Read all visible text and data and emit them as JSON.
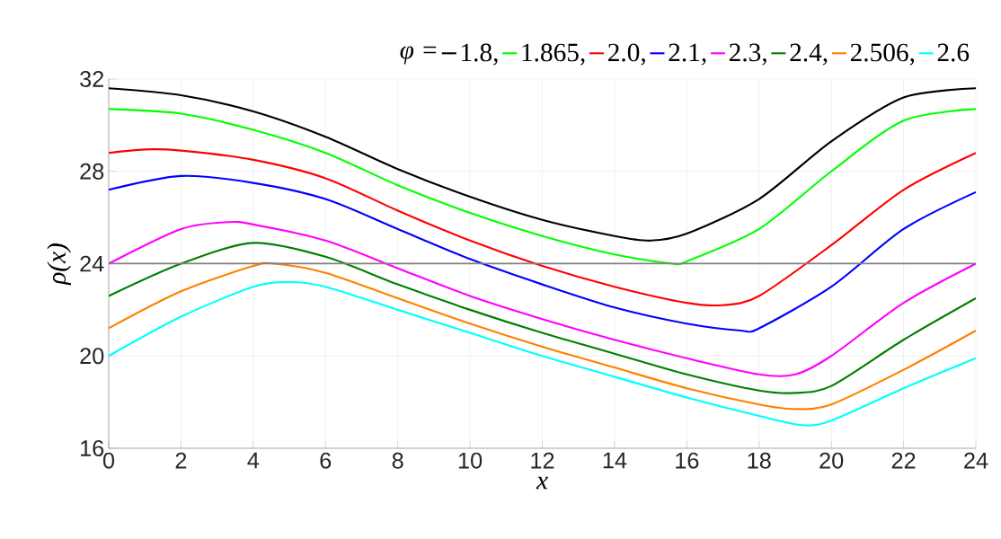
{
  "chart_data": {
    "type": "line",
    "legend_title": "φ =",
    "xlabel": "x",
    "ylabel": "ρ(x)",
    "xlim": [
      0,
      24
    ],
    "ylim": [
      16,
      32
    ],
    "xticks": [
      0,
      2,
      4,
      6,
      8,
      10,
      12,
      14,
      16,
      18,
      20,
      22,
      24
    ],
    "yticks": [
      16,
      20,
      24,
      28,
      32
    ],
    "grid": true,
    "legend": "top right",
    "marker": "none",
    "line_style": "solid",
    "ref_lines": [
      {
        "axis": "y",
        "value": 24,
        "color": "#808080"
      }
    ],
    "series": [
      {
        "name": "1.8,",
        "color": "#000000",
        "x": [
          0,
          2,
          4,
          6,
          8,
          10,
          12,
          14,
          15,
          16,
          18,
          20,
          22,
          24
        ],
        "values": [
          31.6,
          31.3,
          30.6,
          29.5,
          28.1,
          26.9,
          25.9,
          25.2,
          25.0,
          25.3,
          26.8,
          29.3,
          31.2,
          31.6
        ]
      },
      {
        "name": "1.865,",
        "color": "#00ff00",
        "x": [
          0,
          2,
          4,
          6,
          8,
          10,
          12,
          14,
          15.6,
          16,
          18,
          20,
          22,
          24
        ],
        "values": [
          30.7,
          30.5,
          29.8,
          28.8,
          27.4,
          26.2,
          25.2,
          24.4,
          24.0,
          24.1,
          25.5,
          28.0,
          30.2,
          30.7
        ]
      },
      {
        "name": "2.0,",
        "color": "#ff0000",
        "x": [
          0,
          1,
          2,
          4,
          6,
          8,
          10,
          12,
          14,
          16,
          17,
          18,
          20,
          22,
          24
        ],
        "values": [
          28.8,
          28.95,
          28.9,
          28.5,
          27.7,
          26.3,
          25.0,
          23.9,
          23.0,
          22.3,
          22.2,
          22.6,
          24.8,
          27.2,
          28.8
        ]
      },
      {
        "name": "2.1,",
        "color": "#0000ff",
        "x": [
          0,
          2,
          4,
          6,
          8,
          10,
          12,
          14,
          16,
          17.5,
          18,
          20,
          22,
          24
        ],
        "values": [
          27.2,
          27.8,
          27.5,
          26.8,
          25.5,
          24.2,
          23.1,
          22.1,
          21.4,
          21.1,
          21.2,
          23.0,
          25.5,
          27.1
        ]
      },
      {
        "name": "2.3,",
        "color": "#ff00ff",
        "x": [
          0,
          2,
          3.3,
          4,
          6,
          8,
          10,
          12,
          14,
          16,
          18,
          19,
          20,
          22,
          24
        ],
        "values": [
          24.0,
          25.5,
          25.8,
          25.7,
          25.0,
          23.8,
          22.6,
          21.6,
          20.7,
          19.9,
          19.2,
          19.2,
          20.0,
          22.3,
          24.0
        ]
      },
      {
        "name": "2.4,",
        "color": "#008000",
        "x": [
          0,
          2,
          4,
          6,
          8,
          10,
          12,
          14,
          16,
          18,
          19,
          20,
          22,
          24
        ],
        "values": [
          22.6,
          24.0,
          24.9,
          24.3,
          23.1,
          22.0,
          21.0,
          20.1,
          19.2,
          18.5,
          18.4,
          18.7,
          20.7,
          22.5
        ]
      },
      {
        "name": "2.506,",
        "color": "#ff8000",
        "x": [
          0,
          2,
          4,
          4.6,
          6,
          8,
          10,
          12,
          14,
          16,
          18,
          19,
          20,
          22,
          24
        ],
        "values": [
          21.2,
          22.8,
          23.9,
          24.0,
          23.6,
          22.5,
          21.4,
          20.4,
          19.5,
          18.6,
          17.9,
          17.7,
          17.9,
          19.4,
          21.1
        ]
      },
      {
        "name": "2.6",
        "color": "#00ffff",
        "x": [
          0,
          2,
          4,
          5,
          6,
          8,
          10,
          12,
          14,
          16,
          18,
          19.2,
          20,
          22,
          24
        ],
        "values": [
          20.0,
          21.7,
          23.0,
          23.2,
          23.0,
          22.0,
          21.0,
          20.0,
          19.1,
          18.2,
          17.4,
          17.0,
          17.2,
          18.6,
          19.9
        ]
      }
    ]
  }
}
